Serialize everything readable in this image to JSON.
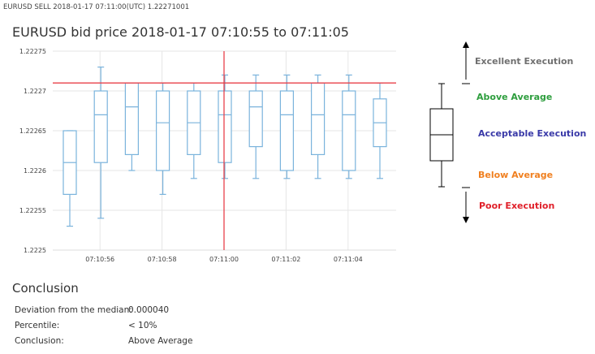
{
  "header": {
    "top_line": "EURUSD SELL 2018-01-17 07:11:00(UTC) 1.22271001",
    "title": "EURUSD bid price 2018-01-17 07:10:55 to 07:11:05"
  },
  "chart_data": {
    "type": "box",
    "title": "EURUSD bid price 2018-01-17 07:10:55 to 07:11:05",
    "y_ticks": [
      "1.22275",
      "1.2227",
      "1.22265",
      "1.2226",
      "1.22255",
      "1.2225"
    ],
    "ylim": [
      1.2225,
      1.22275
    ],
    "x_ticks": [
      "07:10:56",
      "07:10:58",
      "07:11:00",
      "07:11:02",
      "07:11:04"
    ],
    "grid": true,
    "reference_price": 1.22271001,
    "reference_time": "07:11:00",
    "boxes": [
      {
        "min": 1.22253,
        "q1": 1.22257,
        "median": 1.22261,
        "q3": 1.22265,
        "max": 1.22265
      },
      {
        "min": 1.22254,
        "q1": 1.22261,
        "median": 1.22267,
        "q3": 1.2227,
        "max": 1.22273
      },
      {
        "min": 1.2226,
        "q1": 1.22262,
        "median": 1.22268,
        "q3": 1.22271,
        "max": 1.22271
      },
      {
        "min": 1.22257,
        "q1": 1.2226,
        "median": 1.22266,
        "q3": 1.2227,
        "max": 1.22271
      },
      {
        "min": 1.22259,
        "q1": 1.22262,
        "median": 1.22266,
        "q3": 1.2227,
        "max": 1.22271
      },
      {
        "min": 1.22259,
        "q1": 1.22261,
        "median": 1.22267,
        "q3": 1.2227,
        "max": 1.22272
      },
      {
        "min": 1.22259,
        "q1": 1.22263,
        "median": 1.22268,
        "q3": 1.2227,
        "max": 1.22272
      },
      {
        "min": 1.22259,
        "q1": 1.2226,
        "median": 1.22267,
        "q3": 1.2227,
        "max": 1.22272
      },
      {
        "min": 1.22259,
        "q1": 1.22262,
        "median": 1.22267,
        "q3": 1.22271,
        "max": 1.22272
      },
      {
        "min": 1.22259,
        "q1": 1.2226,
        "median": 1.22267,
        "q3": 1.2227,
        "max": 1.22272
      },
      {
        "min": 1.22259,
        "q1": 1.22263,
        "median": 1.22266,
        "q3": 1.22269,
        "max": 1.22271
      }
    ]
  },
  "legend": {
    "items": [
      {
        "label": "Excellent Execution",
        "color": "#707070"
      },
      {
        "label": "Above Average",
        "color": "#2e9e3e"
      },
      {
        "label": "Acceptable Execution",
        "color": "#3a3aa8"
      },
      {
        "label": "Below Average",
        "color": "#f08020"
      },
      {
        "label": "Poor Execution",
        "color": "#e0202a"
      }
    ]
  },
  "colors": {
    "box_stroke": "#7ab3dc",
    "reference_line": "#e8414a",
    "grid": "#e6e6e6"
  },
  "conclusion": {
    "title": "Conclusion",
    "rows": [
      {
        "label": "Deviation from the median:",
        "value": "0.000040"
      },
      {
        "label": "Percentile:",
        "value": "< 10%"
      },
      {
        "label": "Conclusion:",
        "value": "Above Average"
      }
    ]
  }
}
